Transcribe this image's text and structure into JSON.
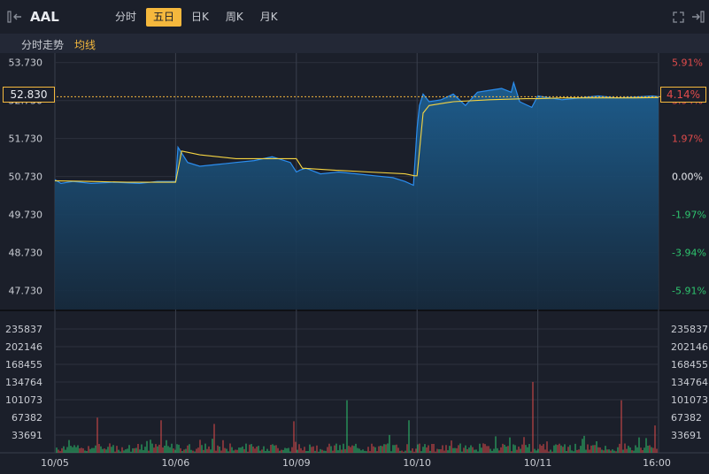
{
  "header": {
    "symbol": "AAL",
    "tabs": [
      "分时",
      "五日",
      "日K",
      "周K",
      "月K"
    ],
    "active_tab": 1
  },
  "subheader": {
    "title": "分时走势",
    "avg_label": "均线"
  },
  "current": {
    "price": "52.830",
    "pct": "4.14%"
  },
  "colors": {
    "up": "#e04b4b",
    "down": "#2ec46e",
    "price_line": "#2b8ef0",
    "avg_line": "#f5d442",
    "accent": "#f5b83d"
  },
  "chart_data": {
    "type": "line",
    "price_axis": {
      "labels": [
        "53.730",
        "52.730",
        "51.730",
        "50.730",
        "49.730",
        "48.730",
        "47.730"
      ],
      "values": [
        53.73,
        52.73,
        51.73,
        50.73,
        49.73,
        48.73,
        47.73
      ],
      "ylim": [
        47.23,
        53.98
      ]
    },
    "pct_axis": {
      "labels": [
        "5.91%",
        "3.94%",
        "1.97%",
        "0.00%",
        "-1.97%",
        "-3.94%",
        "-5.91%"
      ]
    },
    "volume_axis": {
      "labels": [
        "235837",
        "202146",
        "168455",
        "134764",
        "101073",
        "67382",
        "33691"
      ],
      "values": [
        235837,
        202146,
        168455,
        134764,
        101073,
        67382,
        33691
      ],
      "ylim": [
        0,
        269528
      ]
    },
    "x_labels": [
      "10/05",
      "10/06",
      "10/09",
      "10/10",
      "10/11",
      "16:00"
    ],
    "day_count": 5,
    "series": [
      {
        "x": [
          0,
          0.05,
          0.15,
          0.3,
          0.5,
          0.7,
          0.85,
          0.98,
          1.0,
          1.02,
          1.05,
          1.1,
          1.2,
          1.35,
          1.5,
          1.65,
          1.8,
          1.95,
          2.0,
          2.03,
          2.08,
          2.2,
          2.35,
          2.5,
          2.65,
          2.8,
          2.9,
          2.97,
          3.0,
          3.02,
          3.05,
          3.1,
          3.2,
          3.3,
          3.4,
          3.5,
          3.6,
          3.7,
          3.78,
          3.8,
          3.85,
          3.95,
          4.0,
          4.1,
          4.2,
          4.35,
          4.5,
          4.65,
          4.8,
          4.95,
          5.0
        ],
        "values": [
          50.65,
          50.55,
          50.6,
          50.55,
          50.58,
          50.55,
          50.6,
          50.6,
          50.6,
          51.5,
          51.35,
          51.1,
          51.0,
          51.05,
          51.1,
          51.15,
          51.25,
          51.1,
          50.85,
          50.9,
          50.95,
          50.8,
          50.85,
          50.8,
          50.75,
          50.7,
          50.6,
          50.5,
          52.0,
          52.6,
          52.9,
          52.7,
          52.75,
          52.9,
          52.6,
          52.95,
          53.0,
          53.05,
          52.95,
          53.2,
          52.7,
          52.55,
          52.85,
          52.8,
          52.75,
          52.8,
          52.85,
          52.8,
          52.82,
          52.85,
          52.83
        ]
      },
      {
        "x": [
          0,
          0.3,
          0.6,
          0.98,
          1.0,
          1.05,
          1.2,
          1.5,
          1.8,
          1.98,
          2.0,
          2.05,
          2.3,
          2.6,
          2.9,
          2.98,
          3.0,
          3.05,
          3.1,
          3.3,
          3.6,
          3.9,
          3.98,
          4.0,
          4.2,
          4.5,
          4.8,
          5.0
        ],
        "values": [
          50.62,
          50.6,
          50.58,
          50.58,
          50.58,
          51.4,
          51.3,
          51.2,
          51.2,
          51.2,
          51.2,
          50.95,
          50.9,
          50.85,
          50.8,
          50.75,
          50.75,
          52.4,
          52.6,
          52.7,
          52.75,
          52.78,
          52.78,
          52.78,
          52.8,
          52.8,
          52.8,
          52.81
        ]
      }
    ]
  }
}
